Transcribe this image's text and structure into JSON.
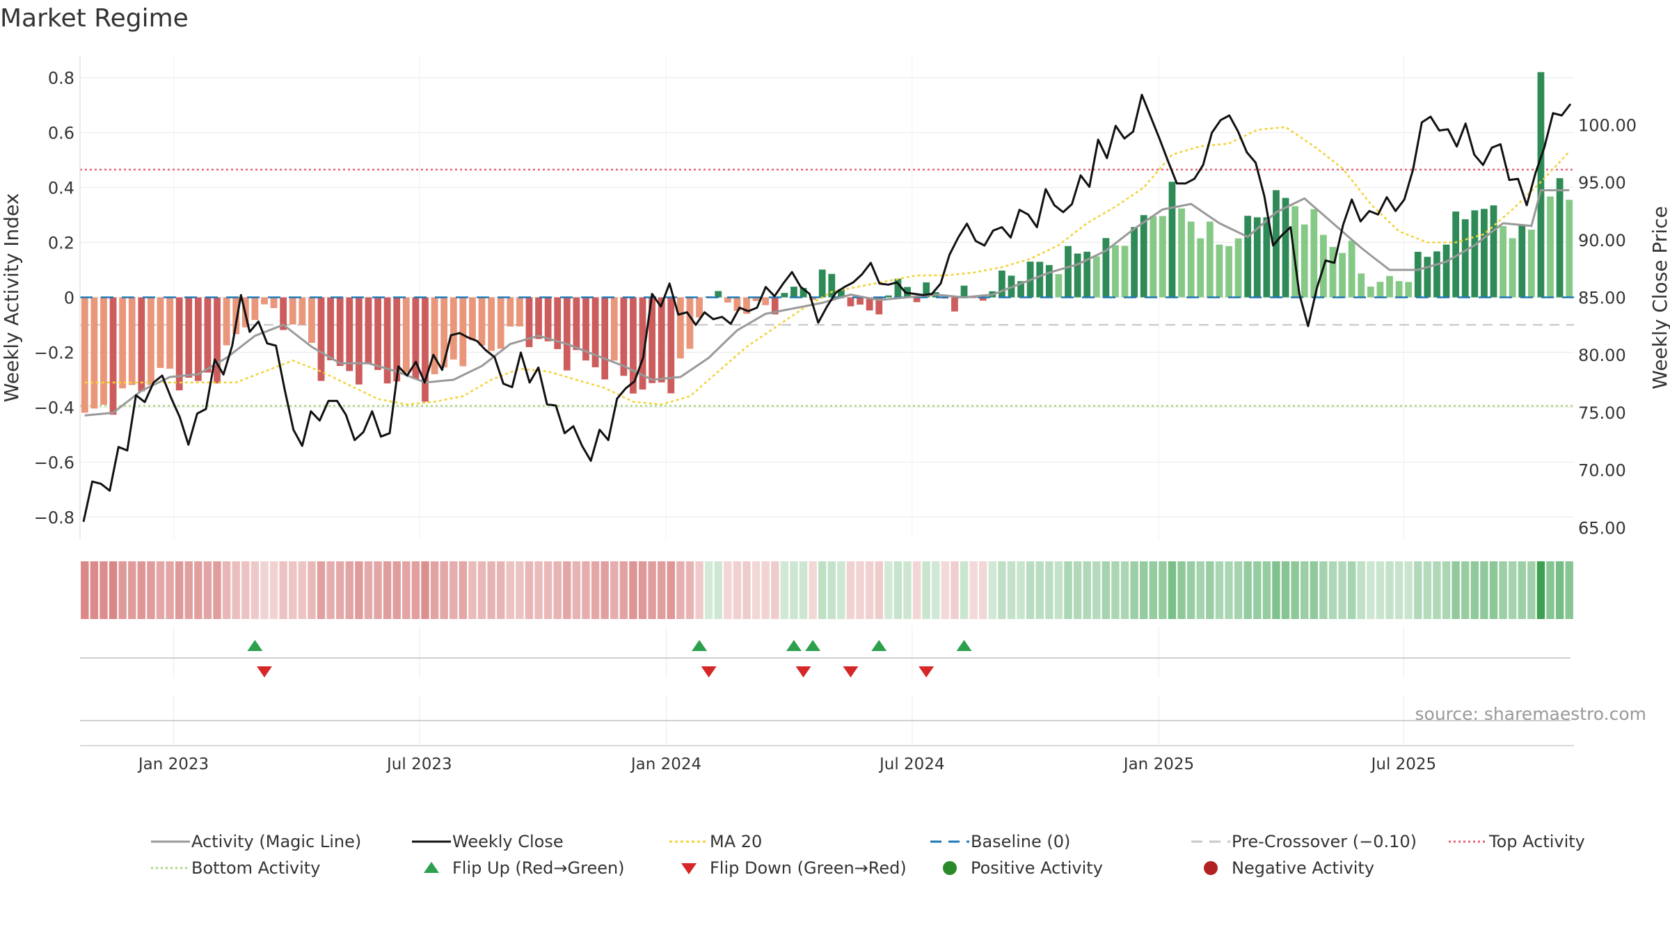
{
  "title": "Market Regime",
  "source_text": "source: sharemaestro.com",
  "colors": {
    "magic_line": "#999999",
    "weekly_close": "#111111",
    "ma20": "#f2d33a",
    "baseline": "#1f77b4",
    "pre_crossover": "#c8c8c8",
    "top_activity": "#e8607a",
    "bottom_activity": "#a8d87a",
    "flip_up": "#2ca04c",
    "flip_down": "#d62728",
    "pos_dark": "#2e8b57",
    "pos_light": "#86c987",
    "neg_dark": "#cd5c5c",
    "neg_light": "#e9967a"
  },
  "legend": [
    {
      "label": "Activity (Magic Line)",
      "symbol": "line-solid-gray"
    },
    {
      "label": "Weekly Close",
      "symbol": "line-solid-black"
    },
    {
      "label": "MA 20",
      "symbol": "line-dotted-yellow"
    },
    {
      "label": "Baseline (0)",
      "symbol": "line-dashed-blue"
    },
    {
      "label": "Pre-Crossover (−0.10)",
      "symbol": "line-dashed-gray"
    },
    {
      "label": "Top Activity",
      "symbol": "line-dotted-pink"
    },
    {
      "label": "Bottom Activity",
      "symbol": "line-dotted-green"
    },
    {
      "label": "Flip Up (Red→Green)",
      "symbol": "triangle-up-green"
    },
    {
      "label": "Flip Down (Green→Red)",
      "symbol": "triangle-down-red"
    },
    {
      "label": "Positive Activity",
      "symbol": "circle-green"
    },
    {
      "label": "Negative Activity",
      "symbol": "circle-red"
    }
  ],
  "chart_data": {
    "type": "bar",
    "title": "Market Regime",
    "ylabel": "Weekly Activity Index",
    "y2label": "Weekly Close Price",
    "ylim": [
      -0.88,
      0.88
    ],
    "y2lim": [
      64,
      106
    ],
    "yticks": [
      "0.8",
      "0.6",
      "0.4",
      "0.2",
      "0",
      "−0.2",
      "−0.4",
      "−0.6",
      "−0.8"
    ],
    "y2ticks": [
      "100.00",
      "95.00",
      "90.00",
      "85.00",
      "80.00",
      "75.00",
      "70.00",
      "65.00"
    ],
    "xticks": [
      "Jan 2023",
      "Jul 2023",
      "Jan 2024",
      "Jul 2024",
      "Jan 2025",
      "Jul 2025"
    ],
    "start_date": "2022-10-26",
    "weeks": 158,
    "reference_lines": {
      "baseline": 0,
      "pre_crossover": -0.1,
      "top_activity": 0.465,
      "bottom_activity": -0.395
    },
    "activity_anchors": [
      [
        0,
        -0.44
      ],
      [
        2,
        -0.4
      ],
      [
        5,
        -0.34
      ],
      [
        8,
        -0.28
      ],
      [
        10,
        -0.29
      ],
      [
        12,
        -0.32
      ],
      [
        14,
        -0.26
      ],
      [
        16,
        -0.15
      ],
      [
        18,
        -0.05
      ],
      [
        20,
        -0.06
      ],
      [
        23,
        -0.12
      ],
      [
        25,
        -0.25
      ],
      [
        28,
        -0.27
      ],
      [
        31,
        -0.28
      ],
      [
        34,
        -0.3
      ],
      [
        36,
        -0.33
      ],
      [
        38,
        -0.27
      ],
      [
        40,
        -0.2
      ],
      [
        43,
        -0.18
      ],
      [
        46,
        -0.12
      ],
      [
        48,
        -0.16
      ],
      [
        50,
        -0.2
      ],
      [
        53,
        -0.24
      ],
      [
        56,
        -0.27
      ],
      [
        58,
        -0.32
      ],
      [
        60,
        -0.34
      ],
      [
        62,
        -0.3
      ],
      [
        64,
        -0.2
      ],
      [
        66,
        0.05
      ],
      [
        67,
        -0.02
      ],
      [
        69,
        -0.03
      ],
      [
        71,
        -0.05
      ],
      [
        73,
        -0.02
      ],
      [
        75,
        0.02
      ],
      [
        77,
        0.04
      ],
      [
        79,
        0.08
      ],
      [
        81,
        0.0
      ],
      [
        82,
        -0.07
      ],
      [
        84,
        -0.03
      ],
      [
        86,
        0.04
      ],
      [
        88,
        0.03
      ],
      [
        90,
        0.01
      ],
      [
        92,
        -0.01
      ],
      [
        94,
        0.0
      ],
      [
        95,
        0.01
      ],
      [
        97,
        0.06
      ],
      [
        99,
        0.1
      ],
      [
        102,
        0.12
      ],
      [
        104,
        0.14
      ],
      [
        106,
        0.18
      ],
      [
        108,
        0.17
      ],
      [
        110,
        0.22
      ],
      [
        113,
        0.3
      ],
      [
        115,
        0.38
      ],
      [
        116,
        0.32
      ],
      [
        118,
        0.25
      ],
      [
        120,
        0.2
      ],
      [
        122,
        0.22
      ],
      [
        124,
        0.3
      ],
      [
        126,
        0.36
      ],
      [
        128,
        0.34
      ],
      [
        130,
        0.27
      ],
      [
        132,
        0.2
      ],
      [
        134,
        0.16
      ],
      [
        135,
        0.1
      ],
      [
        137,
        0.04
      ],
      [
        139,
        0.07
      ],
      [
        141,
        0.12
      ],
      [
        143,
        0.18
      ],
      [
        145,
        0.26
      ],
      [
        147,
        0.34
      ],
      [
        149,
        0.3
      ],
      [
        151,
        0.25
      ],
      [
        152,
        0.23
      ],
      [
        153,
        0.24
      ],
      [
        154,
        0.82
      ],
      [
        155,
        0.4
      ],
      [
        156,
        0.38
      ],
      [
        157,
        0.37
      ]
    ],
    "magic_anchors": [
      [
        0,
        -0.43
      ],
      [
        3,
        -0.42
      ],
      [
        6,
        -0.34
      ],
      [
        9,
        -0.29
      ],
      [
        12,
        -0.28
      ],
      [
        15,
        -0.22
      ],
      [
        18,
        -0.14
      ],
      [
        21,
        -0.1
      ],
      [
        24,
        -0.18
      ],
      [
        27,
        -0.24
      ],
      [
        30,
        -0.24
      ],
      [
        33,
        -0.27
      ],
      [
        36,
        -0.31
      ],
      [
        39,
        -0.3
      ],
      [
        42,
        -0.25
      ],
      [
        45,
        -0.17
      ],
      [
        48,
        -0.14
      ],
      [
        51,
        -0.17
      ],
      [
        54,
        -0.21
      ],
      [
        57,
        -0.25
      ],
      [
        60,
        -0.3
      ],
      [
        63,
        -0.29
      ],
      [
        66,
        -0.22
      ],
      [
        69,
        -0.12
      ],
      [
        72,
        -0.06
      ],
      [
        75,
        -0.04
      ],
      [
        78,
        -0.02
      ],
      [
        81,
        0.01
      ],
      [
        84,
        -0.01
      ],
      [
        87,
        0.0
      ],
      [
        90,
        0.01
      ],
      [
        93,
        0.0
      ],
      [
        96,
        0.01
      ],
      [
        99,
        0.05
      ],
      [
        102,
        0.09
      ],
      [
        105,
        0.12
      ],
      [
        108,
        0.17
      ],
      [
        111,
        0.25
      ],
      [
        114,
        0.32
      ],
      [
        117,
        0.34
      ],
      [
        120,
        0.27
      ],
      [
        123,
        0.22
      ],
      [
        126,
        0.31
      ],
      [
        129,
        0.36
      ],
      [
        132,
        0.27
      ],
      [
        135,
        0.18
      ],
      [
        138,
        0.1
      ],
      [
        141,
        0.1
      ],
      [
        144,
        0.13
      ],
      [
        147,
        0.19
      ],
      [
        150,
        0.27
      ],
      [
        153,
        0.26
      ],
      [
        154,
        0.39
      ],
      [
        157,
        0.39
      ]
    ],
    "close_anchors": [
      [
        0,
        65.5
      ],
      [
        1,
        69.0
      ],
      [
        2,
        68.8
      ],
      [
        3,
        68.2
      ],
      [
        4,
        72.0
      ],
      [
        5,
        71.7
      ],
      [
        6,
        76.5
      ],
      [
        7,
        75.9
      ],
      [
        8,
        77.6
      ],
      [
        9,
        78.2
      ],
      [
        10,
        76.3
      ],
      [
        11,
        74.6
      ],
      [
        12,
        72.2
      ],
      [
        13,
        74.9
      ],
      [
        14,
        75.3
      ],
      [
        15,
        79.6
      ],
      [
        16,
        78.3
      ],
      [
        17,
        80.8
      ],
      [
        18,
        85.2
      ],
      [
        19,
        82.0
      ],
      [
        20,
        82.9
      ],
      [
        21,
        81.0
      ],
      [
        22,
        80.8
      ],
      [
        23,
        77.0
      ],
      [
        24,
        73.5
      ],
      [
        25,
        72.1
      ],
      [
        26,
        75.1
      ],
      [
        27,
        74.3
      ],
      [
        28,
        76.0
      ],
      [
        29,
        76.0
      ],
      [
        30,
        74.8
      ],
      [
        31,
        72.6
      ],
      [
        32,
        73.3
      ],
      [
        33,
        75.1
      ],
      [
        34,
        72.9
      ],
      [
        35,
        73.2
      ],
      [
        36,
        79.0
      ],
      [
        37,
        78.2
      ],
      [
        38,
        79.4
      ],
      [
        39,
        77.6
      ],
      [
        40,
        80.0
      ],
      [
        41,
        78.7
      ],
      [
        42,
        81.7
      ],
      [
        43,
        81.9
      ],
      [
        44,
        81.5
      ],
      [
        45,
        81.2
      ],
      [
        46,
        80.4
      ],
      [
        47,
        79.8
      ],
      [
        48,
        77.5
      ],
      [
        49,
        77.2
      ],
      [
        50,
        80.2
      ],
      [
        51,
        77.6
      ],
      [
        52,
        78.9
      ],
      [
        53,
        75.7
      ],
      [
        54,
        75.6
      ],
      [
        55,
        73.2
      ],
      [
        56,
        73.8
      ],
      [
        57,
        72.1
      ],
      [
        58,
        70.8
      ],
      [
        59,
        73.5
      ],
      [
        60,
        72.6
      ],
      [
        61,
        76.2
      ],
      [
        62,
        77.1
      ],
      [
        63,
        77.7
      ],
      [
        64,
        79.8
      ],
      [
        65,
        85.3
      ],
      [
        66,
        84.2
      ],
      [
        67,
        86.2
      ],
      [
        68,
        83.5
      ],
      [
        69,
        83.7
      ],
      [
        70,
        82.6
      ],
      [
        71,
        83.7
      ],
      [
        72,
        83.1
      ],
      [
        73,
        83.3
      ],
      [
        74,
        82.7
      ],
      [
        75,
        84.1
      ],
      [
        76,
        83.8
      ],
      [
        77,
        84.1
      ],
      [
        78,
        85.9
      ],
      [
        79,
        85.1
      ],
      [
        80,
        86.2
      ],
      [
        81,
        87.2
      ],
      [
        82,
        85.9
      ],
      [
        83,
        85.3
      ],
      [
        84,
        82.8
      ],
      [
        85,
        84.2
      ],
      [
        86,
        85.4
      ],
      [
        87,
        85.9
      ],
      [
        88,
        86.3
      ],
      [
        89,
        87.0
      ],
      [
        90,
        88.0
      ],
      [
        91,
        86.2
      ],
      [
        92,
        86.1
      ],
      [
        93,
        86.3
      ],
      [
        94,
        85.4
      ],
      [
        95,
        85.3
      ],
      [
        96,
        85.2
      ],
      [
        97,
        85.3
      ],
      [
        98,
        86.2
      ],
      [
        99,
        88.7
      ],
      [
        100,
        90.2
      ],
      [
        101,
        91.4
      ],
      [
        102,
        89.9
      ],
      [
        103,
        89.5
      ],
      [
        104,
        90.8
      ],
      [
        105,
        91.1
      ],
      [
        106,
        90.2
      ],
      [
        107,
        92.6
      ],
      [
        108,
        92.2
      ],
      [
        109,
        91.1
      ],
      [
        110,
        94.4
      ],
      [
        111,
        93.0
      ],
      [
        112,
        92.4
      ],
      [
        113,
        93.1
      ],
      [
        114,
        95.6
      ],
      [
        115,
        94.6
      ],
      [
        116,
        98.7
      ],
      [
        117,
        97.1
      ],
      [
        118,
        99.9
      ],
      [
        119,
        98.8
      ],
      [
        120,
        99.4
      ],
      [
        121,
        102.6
      ],
      [
        122,
        100.7
      ],
      [
        123,
        98.8
      ],
      [
        124,
        96.8
      ],
      [
        125,
        94.9
      ],
      [
        126,
        94.9
      ],
      [
        127,
        95.3
      ],
      [
        128,
        96.5
      ],
      [
        129,
        99.3
      ],
      [
        130,
        100.4
      ],
      [
        131,
        100.8
      ],
      [
        132,
        99.4
      ],
      [
        133,
        97.6
      ],
      [
        134,
        96.7
      ],
      [
        135,
        93.8
      ],
      [
        136,
        89.5
      ],
      [
        137,
        90.4
      ],
      [
        138,
        91.1
      ],
      [
        139,
        85.3
      ],
      [
        140,
        82.5
      ],
      [
        141,
        85.8
      ],
      [
        142,
        88.2
      ],
      [
        143,
        88.0
      ],
      [
        144,
        91.3
      ],
      [
        145,
        93.5
      ],
      [
        146,
        91.6
      ],
      [
        147,
        92.5
      ],
      [
        148,
        92.2
      ],
      [
        149,
        93.7
      ],
      [
        150,
        92.5
      ],
      [
        151,
        93.5
      ],
      [
        152,
        96.1
      ],
      [
        153,
        100.2
      ],
      [
        154,
        100.7
      ],
      [
        155,
        99.5
      ],
      [
        156,
        99.6
      ],
      [
        157,
        98.1
      ],
      [
        158,
        100.1
      ],
      [
        159,
        97.4
      ],
      [
        160,
        96.5
      ],
      [
        161,
        98.0
      ],
      [
        162,
        98.3
      ],
      [
        163,
        95.2
      ],
      [
        164,
        95.3
      ],
      [
        165,
        93.0
      ],
      [
        166,
        95.8
      ],
      [
        167,
        98.0
      ],
      [
        168,
        101.0
      ],
      [
        169,
        100.8
      ],
      [
        170,
        101.8
      ]
    ],
    "close_week_span": 170,
    "ma20_anchors": [
      [
        0,
        -0.31
      ],
      [
        4,
        -0.31
      ],
      [
        8,
        -0.31
      ],
      [
        12,
        -0.31
      ],
      [
        16,
        -0.31
      ],
      [
        19,
        -0.27
      ],
      [
        22,
        -0.23
      ],
      [
        25,
        -0.27
      ],
      [
        28,
        -0.32
      ],
      [
        31,
        -0.37
      ],
      [
        34,
        -0.39
      ],
      [
        37,
        -0.38
      ],
      [
        40,
        -0.36
      ],
      [
        43,
        -0.3
      ],
      [
        46,
        -0.26
      ],
      [
        49,
        -0.27
      ],
      [
        52,
        -0.3
      ],
      [
        55,
        -0.33
      ],
      [
        58,
        -0.38
      ],
      [
        61,
        -0.39
      ],
      [
        64,
        -0.36
      ],
      [
        67,
        -0.27
      ],
      [
        70,
        -0.18
      ],
      [
        73,
        -0.11
      ],
      [
        76,
        -0.04
      ],
      [
        79,
        0.02
      ],
      [
        82,
        0.04
      ],
      [
        85,
        0.06
      ],
      [
        88,
        0.08
      ],
      [
        91,
        0.08
      ],
      [
        94,
        0.09
      ],
      [
        97,
        0.11
      ],
      [
        100,
        0.14
      ],
      [
        103,
        0.19
      ],
      [
        106,
        0.27
      ],
      [
        109,
        0.33
      ],
      [
        112,
        0.4
      ],
      [
        115,
        0.52
      ],
      [
        118,
        0.55
      ],
      [
        121,
        0.56
      ],
      [
        124,
        0.61
      ],
      [
        127,
        0.62
      ],
      [
        130,
        0.55
      ],
      [
        133,
        0.47
      ],
      [
        136,
        0.34
      ],
      [
        139,
        0.24
      ],
      [
        142,
        0.2
      ],
      [
        145,
        0.2
      ],
      [
        148,
        0.23
      ],
      [
        151,
        0.32
      ],
      [
        154,
        0.42
      ],
      [
        157,
        0.53
      ],
      [
        158,
        0.59
      ]
    ],
    "flip_up_weeks": [
      18,
      65,
      75,
      77,
      84,
      93
    ],
    "flip_down_weeks": [
      19,
      66,
      76,
      81,
      89
    ]
  }
}
